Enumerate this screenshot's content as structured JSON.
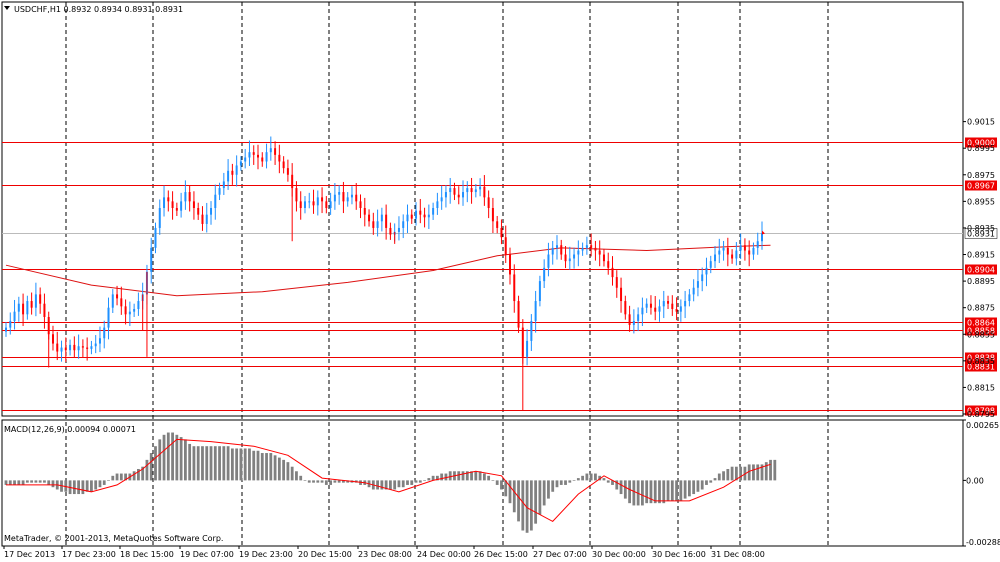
{
  "header": {
    "symbol": "USDCHF,H1",
    "ohlc": "0.8932 0.8934 0.8931 0.8931"
  },
  "macd": {
    "label": "MACD(12,26,9) 0.00094 0.00071"
  },
  "copyright": "MetaTrader, © 2001-2013, MetaQuotes Software Corp.",
  "colors": {
    "up": "#1e90ff",
    "down": "#ff0000",
    "ma": "#dd1111",
    "level": "#ee0000",
    "histogram": "#808080",
    "signal": "#ff0000",
    "grid": "#000000"
  },
  "chart_data": [
    {
      "type": "candlestick",
      "title": "USDCHF,H1",
      "ylim": [
        0.87935,
        0.9105
      ],
      "price_ticks": [
        "0.9015",
        "0.8995",
        "0.8975",
        "0.8955",
        "0.8935",
        "0.8915",
        "0.8895",
        "0.8875",
        "0.8855",
        "0.8835",
        "0.8815",
        "0.8795"
      ],
      "current_price": "0.8931",
      "levels": [
        "0.9000",
        "0.8967",
        "0.8904",
        "0.8864",
        "0.8858",
        "0.8838",
        "0.8831",
        "0.8798"
      ],
      "time_labels": [
        "17 Dec 2013",
        "17 Dec 23:00",
        "18 Dec 15:00",
        "19 Dec 07:00",
        "19 Dec 23:00",
        "20 Dec 15:00",
        "23 Dec 08:00",
        "24 Dec 00:00",
        "26 Dec 15:00",
        "27 Dec 07:00",
        "30 Dec 00:00",
        "30 Dec 16:00",
        "31 Dec 08:00"
      ],
      "closes": [
        0.886,
        0.8865,
        0.8872,
        0.8878,
        0.887,
        0.888,
        0.8875,
        0.8885,
        0.8878,
        0.8868,
        0.8855,
        0.8848,
        0.8842,
        0.8845,
        0.8843,
        0.8847,
        0.8843,
        0.8846,
        0.8845,
        0.8844,
        0.8846,
        0.8848,
        0.8852,
        0.886,
        0.8875,
        0.8885,
        0.8882,
        0.8876,
        0.887,
        0.8872,
        0.8874,
        0.888,
        0.8885,
        0.8902,
        0.892,
        0.8935,
        0.895,
        0.8958,
        0.8955,
        0.895,
        0.8948,
        0.8955,
        0.8962,
        0.8955,
        0.895,
        0.8945,
        0.8938,
        0.8945,
        0.895,
        0.896,
        0.8965,
        0.897,
        0.8978,
        0.8975,
        0.8982,
        0.8985,
        0.8988,
        0.8992,
        0.899,
        0.8988,
        0.8985,
        0.8992,
        0.8995,
        0.899,
        0.8985,
        0.898,
        0.8975,
        0.8965,
        0.8955,
        0.895,
        0.8955,
        0.8955,
        0.8952,
        0.8958,
        0.8955,
        0.895,
        0.8955,
        0.896,
        0.8962,
        0.8955,
        0.8958,
        0.896,
        0.8955,
        0.895,
        0.8945,
        0.894,
        0.8935,
        0.894,
        0.8945,
        0.8935,
        0.893,
        0.8932,
        0.8935,
        0.894,
        0.8945,
        0.8942,
        0.8948,
        0.8945,
        0.8943,
        0.8945,
        0.895,
        0.8955,
        0.8958,
        0.8962,
        0.8965,
        0.896,
        0.8958,
        0.8962,
        0.8965,
        0.8962,
        0.8964,
        0.8966,
        0.8958,
        0.895,
        0.894,
        0.8935,
        0.8928,
        0.8915,
        0.89,
        0.888,
        0.886,
        0.8838,
        0.885,
        0.8865,
        0.888,
        0.8895,
        0.8905,
        0.8915,
        0.892,
        0.8922,
        0.8915,
        0.891,
        0.8912,
        0.8915,
        0.8918,
        0.892,
        0.8922,
        0.892,
        0.8918,
        0.8915,
        0.891,
        0.8905,
        0.8898,
        0.889,
        0.888,
        0.887,
        0.8862,
        0.8865,
        0.887,
        0.8875,
        0.8878,
        0.8875,
        0.8872,
        0.8876,
        0.888,
        0.8878,
        0.8874,
        0.8872,
        0.8876,
        0.888,
        0.8885,
        0.889,
        0.8895,
        0.89,
        0.8905,
        0.891,
        0.8915,
        0.8918,
        0.892,
        0.8915,
        0.8912,
        0.8918,
        0.8922,
        0.8918,
        0.8915,
        0.892,
        0.8925,
        0.8931
      ],
      "ma_series": [
        {
          "t": 0,
          "v": 0.8907
        },
        {
          "t": 20,
          "v": 0.8892
        },
        {
          "t": 40,
          "v": 0.8884
        },
        {
          "t": 60,
          "v": 0.8887
        },
        {
          "t": 80,
          "v": 0.8894
        },
        {
          "t": 100,
          "v": 0.8903
        },
        {
          "t": 115,
          "v": 0.8914
        },
        {
          "t": 130,
          "v": 0.892
        },
        {
          "t": 150,
          "v": 0.8918
        },
        {
          "t": 170,
          "v": 0.8921
        },
        {
          "t": 179,
          "v": 0.8922
        }
      ]
    },
    {
      "type": "histogram+line",
      "title": "MACD(12,26,9)",
      "ylim": [
        -0.00288,
        0.00265
      ],
      "ticks": [
        "0.00265",
        "0.00",
        "-0.00288"
      ],
      "histogram": [
        -0.0002,
        -0.0002,
        -0.0002,
        -0.0002,
        -0.0002,
        -0.0001,
        -0.0001,
        -0.0001,
        -0.0001,
        -0.0001,
        -0.0002,
        -0.0003,
        -0.0004,
        -0.0005,
        -0.0005,
        -0.0006,
        -0.0006,
        -0.0006,
        -0.0006,
        -0.0005,
        -0.0005,
        -0.0004,
        -0.0003,
        -0.0002,
        0.0,
        0.0002,
        0.0003,
        0.0003,
        0.0003,
        0.0003,
        0.0004,
        0.0005,
        0.0006,
        0.0009,
        0.0012,
        0.0015,
        0.0018,
        0.002,
        0.0021,
        0.0021,
        0.002,
        0.0019,
        0.0018,
        0.0016,
        0.0015,
        0.0015,
        0.0015,
        0.0015,
        0.0015,
        0.0015,
        0.0015,
        0.0015,
        0.0015,
        0.0014,
        0.0014,
        0.0014,
        0.0014,
        0.0014,
        0.0013,
        0.0013,
        0.0012,
        0.0012,
        0.0012,
        0.0011,
        0.001,
        0.0009,
        0.0008,
        0.0006,
        0.0004,
        0.0002,
        0.0,
        -0.0001,
        -0.0001,
        -0.0001,
        -0.0001,
        -0.0002,
        -0.0002,
        -0.0001,
        -0.0001,
        -0.0001,
        -0.0001,
        -0.0001,
        -0.0001,
        -0.0002,
        -0.0002,
        -0.0003,
        -0.0004,
        -0.0004,
        -0.0004,
        -0.0004,
        -0.0004,
        -0.0004,
        -0.0003,
        -0.0003,
        -0.0002,
        -0.0002,
        -0.0001,
        -0.0001,
        0.0,
        0.0001,
        0.0002,
        0.0002,
        0.0003,
        0.0003,
        0.0004,
        0.0004,
        0.0004,
        0.0004,
        0.0004,
        0.0004,
        0.0004,
        0.0004,
        0.0003,
        0.0002,
        0.0,
        -0.0002,
        -0.0004,
        -0.0007,
        -0.001,
        -0.0014,
        -0.0018,
        -0.0022,
        -0.0023,
        -0.0022,
        -0.0019,
        -0.0015,
        -0.0011,
        -0.0008,
        -0.0005,
        -0.0003,
        -0.0002,
        -0.0002,
        -0.0001,
        0.0,
        0.0001,
        0.0002,
        0.0003,
        0.0003,
        0.0003,
        0.0002,
        0.0001,
        -0.0001,
        -0.0002,
        -0.0004,
        -0.0006,
        -0.0008,
        -0.001,
        -0.0011,
        -0.0011,
        -0.0011,
        -0.001,
        -0.001,
        -0.001,
        -0.001,
        -0.001,
        -0.0009,
        -0.0009,
        -0.0009,
        -0.0009,
        -0.0008,
        -0.0007,
        -0.0006,
        -0.0005,
        -0.0004,
        -0.0002,
        -0.0001,
        0.0001,
        0.0003,
        0.0004,
        0.0005,
        0.0006,
        0.0006,
        0.0006,
        0.0006,
        0.0007,
        0.0007,
        0.0007,
        0.0007,
        0.0008,
        0.0009,
        0.0009
      ],
      "signal": [
        {
          "t": 0,
          "v": -0.0002
        },
        {
          "t": 12,
          "v": -0.0002
        },
        {
          "t": 20,
          "v": -0.0005
        },
        {
          "t": 26,
          "v": -0.0002
        },
        {
          "t": 32,
          "v": 0.0005
        },
        {
          "t": 40,
          "v": 0.0018
        },
        {
          "t": 48,
          "v": 0.0017
        },
        {
          "t": 58,
          "v": 0.0015
        },
        {
          "t": 66,
          "v": 0.0011
        },
        {
          "t": 74,
          "v": 0.0001
        },
        {
          "t": 84,
          "v": -0.0001
        },
        {
          "t": 92,
          "v": -0.0005
        },
        {
          "t": 100,
          "v": 0.0
        },
        {
          "t": 110,
          "v": 0.0004
        },
        {
          "t": 116,
          "v": 0.0002
        },
        {
          "t": 122,
          "v": -0.0012
        },
        {
          "t": 128,
          "v": -0.0018
        },
        {
          "t": 134,
          "v": -0.0006
        },
        {
          "t": 140,
          "v": 0.0002
        },
        {
          "t": 146,
          "v": -0.0004
        },
        {
          "t": 152,
          "v": -0.0009
        },
        {
          "t": 160,
          "v": -0.0009
        },
        {
          "t": 168,
          "v": -0.0003
        },
        {
          "t": 174,
          "v": 0.0004
        },
        {
          "t": 179,
          "v": 0.0007
        }
      ]
    }
  ]
}
